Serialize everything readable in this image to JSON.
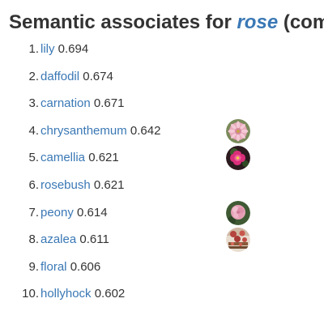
{
  "header": {
    "prefix": "Semantic associates for ",
    "query": "rose",
    "suffix": " (com"
  },
  "associates": [
    {
      "rank": "1.",
      "word": "lily",
      "score": "0.694",
      "image": null
    },
    {
      "rank": "2.",
      "word": "daffodil",
      "score": "0.674",
      "image": null
    },
    {
      "rank": "3.",
      "word": "carnation",
      "score": "0.671",
      "image": null
    },
    {
      "rank": "4.",
      "word": "chrysanthemum",
      "score": "0.642",
      "image": "pink-flower-photo"
    },
    {
      "rank": "5.",
      "word": "camellia",
      "score": "0.621",
      "image": "magenta-flower-photo"
    },
    {
      "rank": "6.",
      "word": "rosebush",
      "score": "0.621",
      "image": null
    },
    {
      "rank": "7.",
      "word": "peony",
      "score": "0.614",
      "image": "pink-peony-photo"
    },
    {
      "rank": "8.",
      "word": "azalea",
      "score": "0.611",
      "image": "azalea-photo"
    },
    {
      "rank": "9.",
      "word": "floral",
      "score": "0.606",
      "image": null
    },
    {
      "rank": "10.",
      "word": "hollyhock",
      "score": "0.602",
      "image": null
    }
  ],
  "colors": {
    "link": "#3a78b5",
    "text": "#333333"
  }
}
